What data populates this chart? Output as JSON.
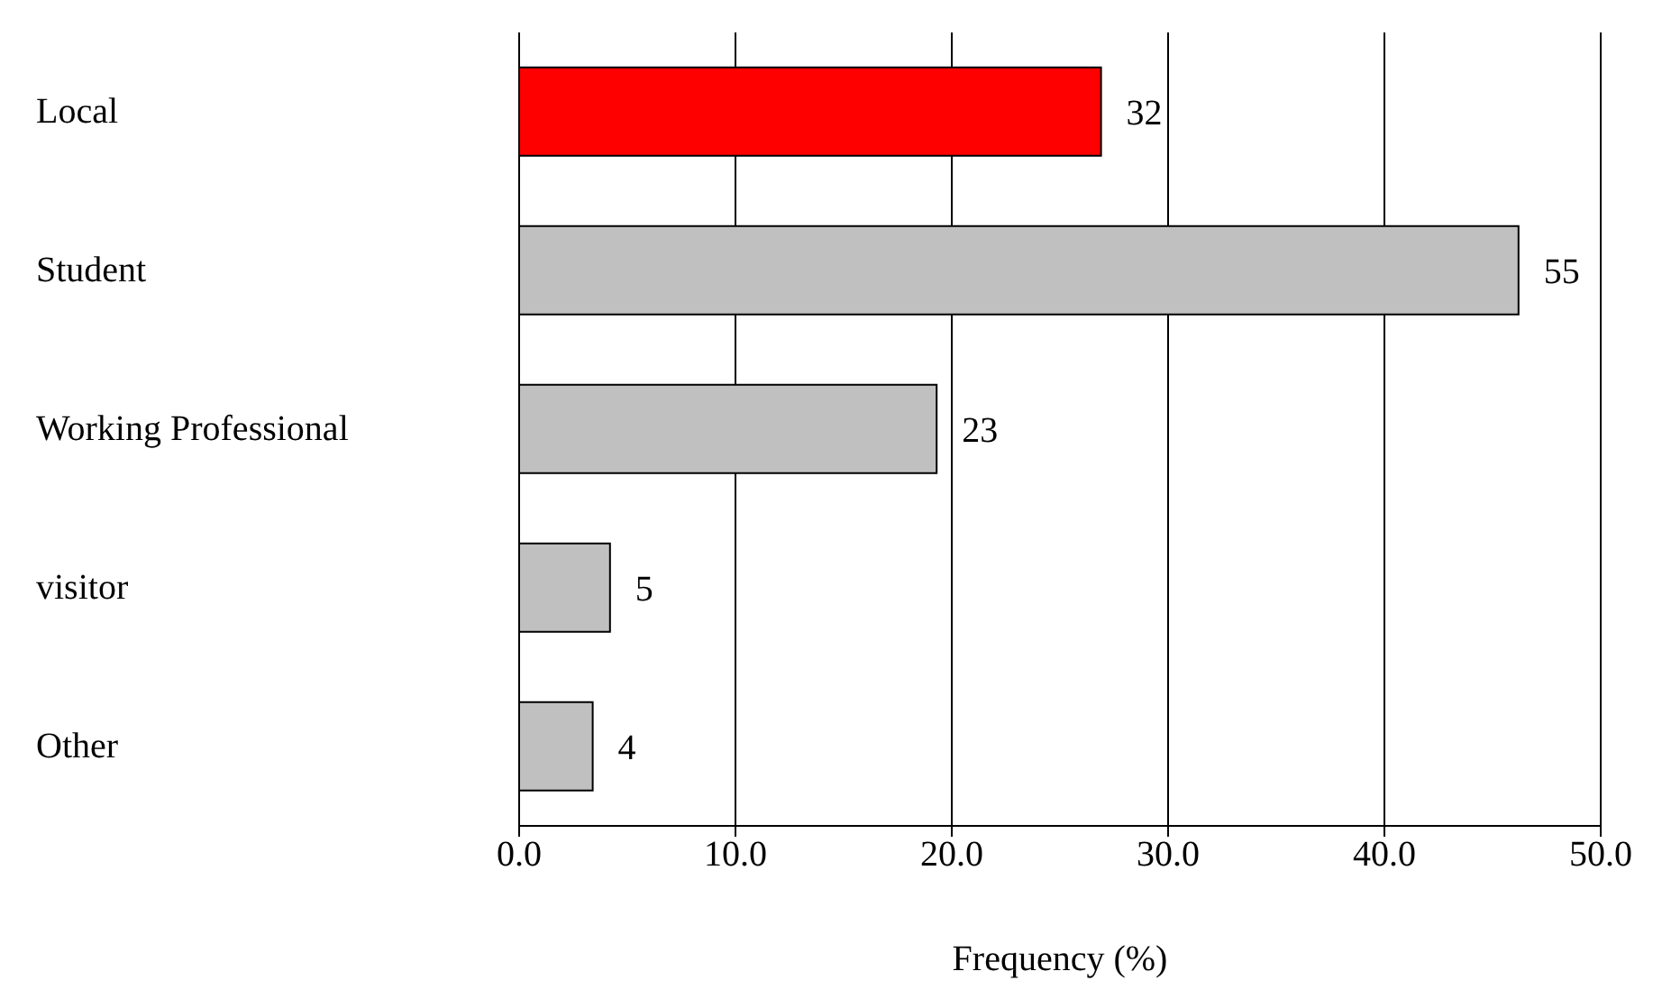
{
  "chart_data": {
    "type": "bar",
    "orientation": "horizontal",
    "xlabel": "Frequency (%)",
    "categories": [
      "Local",
      "Student",
      "Working Professional",
      "visitor",
      "Other"
    ],
    "values": [
      26.9,
      46.2,
      19.3,
      4.2,
      3.4
    ],
    "colors": [
      "#ff0000",
      "#c0c0c0",
      "#c0c0c0",
      "#c0c0c0",
      "#c0c0c0"
    ],
    "annotations": [
      {
        "text": "32",
        "x": 26.9,
        "y": "Local"
      },
      {
        "text": "55",
        "x": 46.2,
        "y": "Student"
      },
      {
        "text": "23",
        "x": 19.3,
        "y": "Working Professional"
      },
      {
        "text": "5",
        "x": 4.2,
        "y": "visitor"
      },
      {
        "text": "4",
        "x": 3.4,
        "y": "Other"
      }
    ],
    "xlim": [
      0,
      50
    ],
    "xticks": [
      {
        "value": 0,
        "label": "0.0"
      },
      {
        "value": 10,
        "label": "10.0"
      },
      {
        "value": 20,
        "label": "20.0"
      },
      {
        "value": 30,
        "label": "30.0"
      },
      {
        "value": 40,
        "label": "40.0"
      },
      {
        "value": 50,
        "label": "50.0"
      }
    ],
    "grid": "x"
  }
}
